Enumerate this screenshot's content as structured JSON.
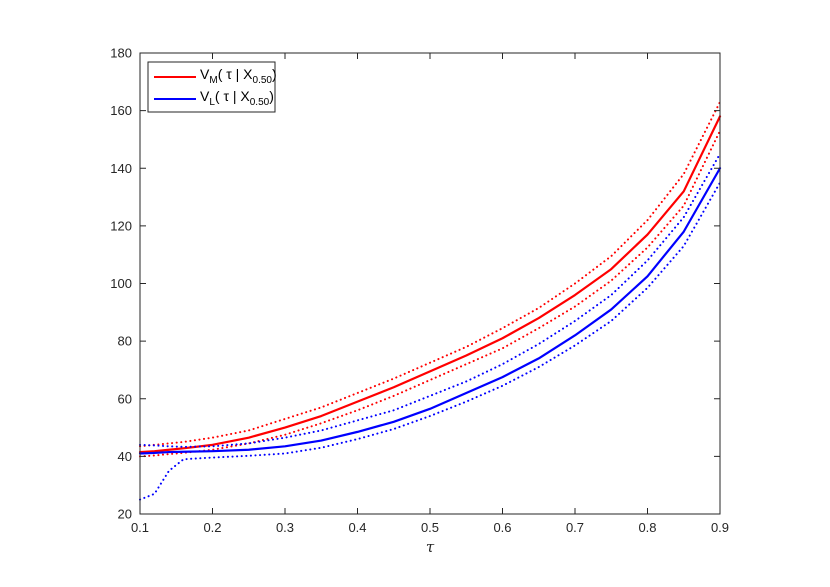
{
  "chart_data": {
    "type": "line",
    "title": "",
    "xlabel": "τ",
    "ylabel": "",
    "xlim": [
      0.1,
      0.9
    ],
    "ylim": [
      20,
      180
    ],
    "xticks": [
      0.1,
      0.2,
      0.3,
      0.4,
      0.5,
      0.6,
      0.7,
      0.8,
      0.9
    ],
    "xtick_labels": [
      "0.1",
      "0.2",
      "0.3",
      "0.4",
      "0.5",
      "0.6",
      "0.7",
      "0.8",
      "0.9"
    ],
    "yticks": [
      20,
      40,
      60,
      80,
      100,
      120,
      140,
      160,
      180
    ],
    "ytick_labels": [
      "20",
      "40",
      "60",
      "80",
      "100",
      "120",
      "140",
      "160",
      "180"
    ],
    "grid": false,
    "legend_position": "top-left",
    "x": [
      0.1,
      0.12,
      0.14,
      0.16,
      0.2,
      0.25,
      0.3,
      0.35,
      0.4,
      0.45,
      0.5,
      0.55,
      0.6,
      0.65,
      0.7,
      0.75,
      0.8,
      0.85,
      0.9
    ],
    "series": [
      {
        "legend": {
          "main": "V",
          "sub1": "M",
          "mid": "( τ | X",
          "sub2": "0.50",
          "end": ")"
        },
        "color": "#ff0000",
        "style": "solid",
        "values": [
          41.5,
          41.8,
          42.3,
          42.8,
          44,
          46.5,
          50,
          54,
          59,
          64,
          69.5,
          75,
          81,
          88,
          96,
          105,
          117,
          132,
          158
        ]
      },
      {
        "color": "#ff0000",
        "style": "dotted",
        "values": [
          43.5,
          44,
          44.5,
          45,
          46.5,
          49,
          53,
          57,
          62,
          67,
          72.5,
          78,
          84.5,
          91.5,
          100,
          109.5,
          122,
          138,
          163
        ]
      },
      {
        "color": "#ff0000",
        "style": "dotted",
        "values": [
          40,
          40.3,
          40.8,
          41.2,
          42.3,
          44.5,
          47.5,
          51.5,
          56,
          61,
          66.5,
          72,
          77.5,
          84.5,
          92,
          101,
          112.5,
          127,
          153
        ]
      },
      {
        "legend": {
          "main": "V",
          "sub1": "L",
          "mid": "( τ | X",
          "sub2": "0.50",
          "end": ")"
        },
        "color": "#0000ff",
        "style": "solid",
        "values": [
          41,
          41.2,
          41.5,
          41.6,
          41.8,
          42.3,
          43.5,
          45.5,
          48.5,
          52,
          56.5,
          62,
          67.5,
          74,
          82,
          91,
          102.5,
          118,
          140
        ]
      },
      {
        "color": "#0000ff",
        "style": "dotted",
        "values": [
          44,
          43.8,
          43.5,
          43.3,
          43.5,
          44.5,
          46.5,
          49,
          52.5,
          56,
          61,
          66,
          72,
          79,
          87,
          96,
          108,
          123,
          145
        ]
      },
      {
        "color": "#0000ff",
        "style": "dotted",
        "values": [
          25,
          27,
          35,
          39,
          39.6,
          40.2,
          41,
          43,
          46,
          49.5,
          54,
          59,
          64.5,
          71,
          78.5,
          87,
          98.5,
          113,
          135
        ]
      }
    ]
  }
}
